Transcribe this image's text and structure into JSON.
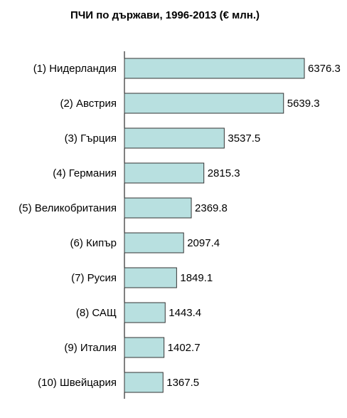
{
  "chart_data": {
    "type": "barh",
    "title": "ПЧИ по държави, 1996-2013 (€ млн.)",
    "categories": [
      "(1) Нидерландия",
      "(2) Австрия",
      "(3) Гърция",
      "(4) Германия",
      "(5) Великобритания",
      "(6) Кипър",
      "(7) Русия",
      "(8) САЩ",
      "(9) Италия",
      "(10) Швейцария"
    ],
    "values": [
      6376.3,
      5639.3,
      3537.5,
      2815.3,
      2369.8,
      2097.4,
      1849.1,
      1443.4,
      1402.7,
      1367.5
    ],
    "color": "#b8e0e0"
  }
}
